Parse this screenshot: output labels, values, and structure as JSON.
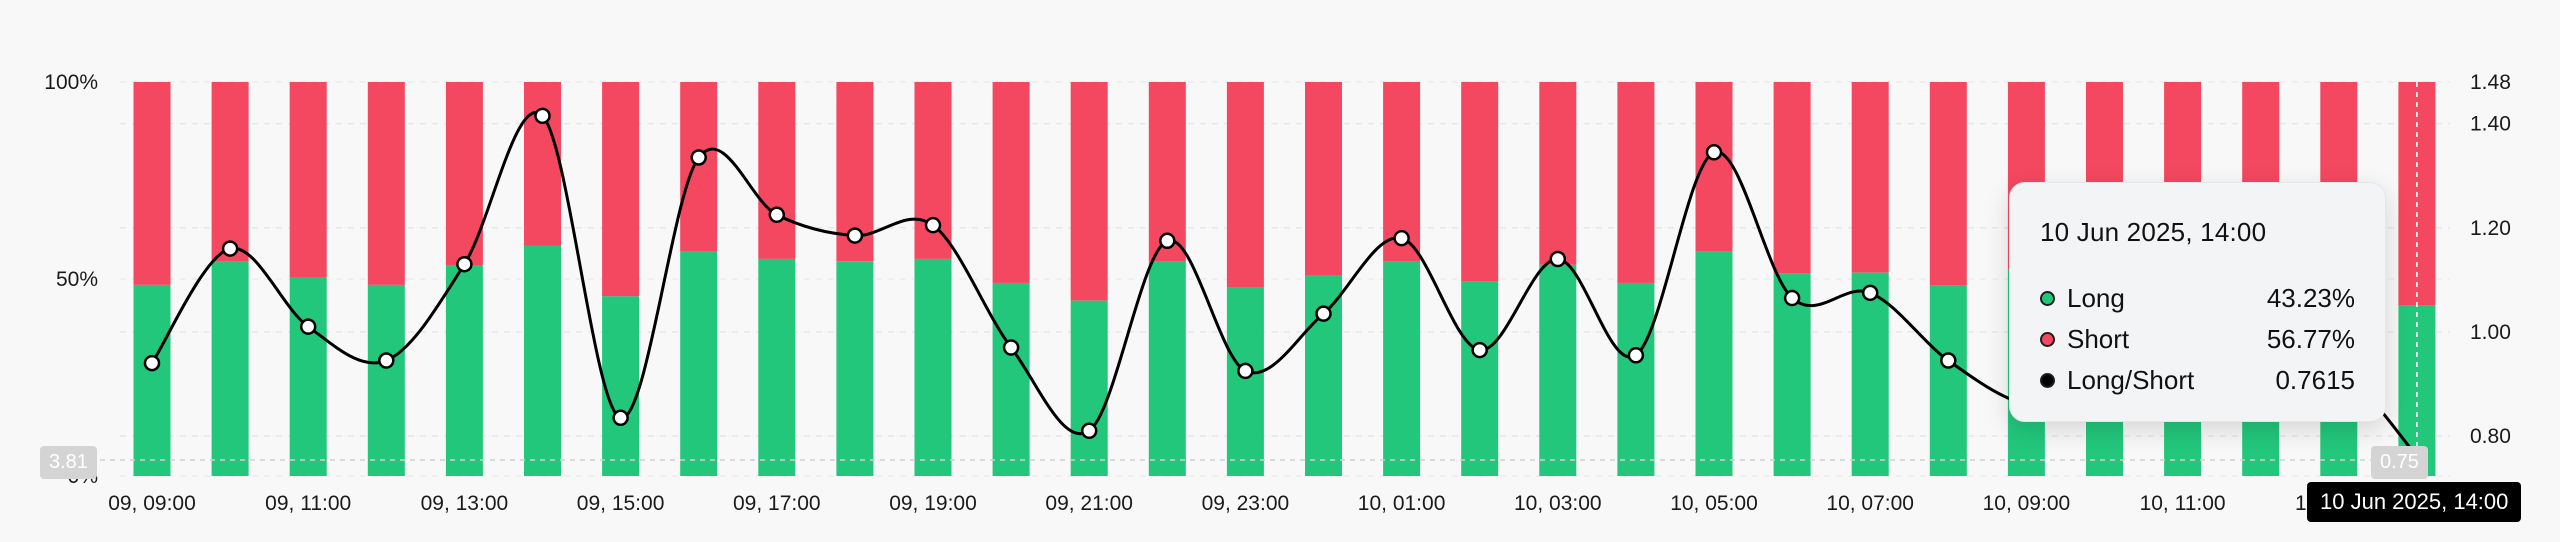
{
  "chart_data": {
    "type": "bar",
    "categories": [
      "09, 09:00",
      "09, 10:00",
      "09, 11:00",
      "09, 12:00",
      "09, 13:00",
      "09, 14:00",
      "09, 15:00",
      "09, 16:00",
      "09, 17:00",
      "09, 18:00",
      "09, 19:00",
      "09, 20:00",
      "09, 21:00",
      "09, 22:00",
      "09, 23:00",
      "10, 00:00",
      "10, 01:00",
      "10, 02:00",
      "10, 03:00",
      "10, 04:00",
      "10, 05:00",
      "10, 06:00",
      "10, 07:00",
      "10, 08:00",
      "10, 09:00",
      "10, 10:00",
      "10, 11:00",
      "10, 12:00",
      "10, 13:00",
      "10, 14:00"
    ],
    "x_tick_labels": [
      "09, 09:00",
      "09, 11:00",
      "09, 13:00",
      "09, 15:00",
      "09, 17:00",
      "09, 19:00",
      "09, 21:00",
      "09, 23:00",
      "10, 01:00",
      "10, 03:00",
      "10, 05:00",
      "10, 07:00",
      "10, 09:00",
      "10, 11:00",
      "10, 13:00"
    ],
    "series": [
      {
        "name": "Long",
        "axis": "left",
        "color": "#22c77c",
        "values": [
          48.5,
          54.4,
          50.4,
          48.5,
          53.4,
          58.5,
          45.6,
          56.9,
          55.1,
          54.5,
          55.1,
          49.0,
          44.5,
          54.4,
          47.8,
          50.8,
          54.4,
          49.3,
          53.6,
          49.0,
          57.1,
          51.5,
          51.6,
          48.3,
          52.5,
          53.0,
          53.5,
          51.0,
          48.5,
          43.23
        ]
      },
      {
        "name": "Short",
        "axis": "left",
        "color": "#f3485f",
        "values": [
          51.5,
          45.6,
          49.6,
          51.5,
          46.6,
          41.5,
          54.4,
          43.1,
          44.9,
          45.5,
          44.9,
          51.0,
          55.5,
          45.6,
          52.2,
          49.2,
          45.6,
          50.7,
          46.4,
          51.0,
          42.9,
          48.5,
          48.4,
          51.7,
          47.5,
          47.0,
          46.5,
          49.0,
          51.5,
          56.77
        ]
      },
      {
        "name": "Long/Short",
        "axis": "right",
        "type": "line",
        "color": "#000000",
        "values": [
          0.94,
          1.16,
          1.01,
          0.945,
          1.13,
          1.415,
          0.835,
          1.335,
          1.225,
          1.185,
          1.205,
          0.97,
          0.81,
          1.175,
          0.925,
          1.035,
          1.18,
          0.965,
          1.14,
          0.955,
          1.345,
          1.065,
          1.075,
          0.945,
          0.86,
          0.865,
          0.88,
          0.9,
          0.925,
          0.7615
        ]
      }
    ],
    "y_left": {
      "ticks": [
        "0%",
        "50%",
        "100%"
      ],
      "ylim": [
        0,
        100
      ]
    },
    "y_right": {
      "ticks": [
        "0.80",
        "1.00",
        "1.20",
        "1.40",
        "1.48"
      ],
      "ylim": [
        0.74,
        1.48
      ]
    },
    "grid": true
  },
  "tooltip": {
    "title": "10 Jun 2025, 14:00",
    "rows": [
      {
        "name": "Long",
        "value": "43.23%",
        "color": "#22c77c"
      },
      {
        "name": "Short",
        "value": "56.77%",
        "color": "#f3485f"
      },
      {
        "name": "Long/Short",
        "value": "0.7615",
        "color": "#000000"
      }
    ]
  },
  "crosshair": {
    "x_label": "10 Jun 2025, 14:00",
    "left_value": "3.81",
    "right_value": "0.75"
  }
}
